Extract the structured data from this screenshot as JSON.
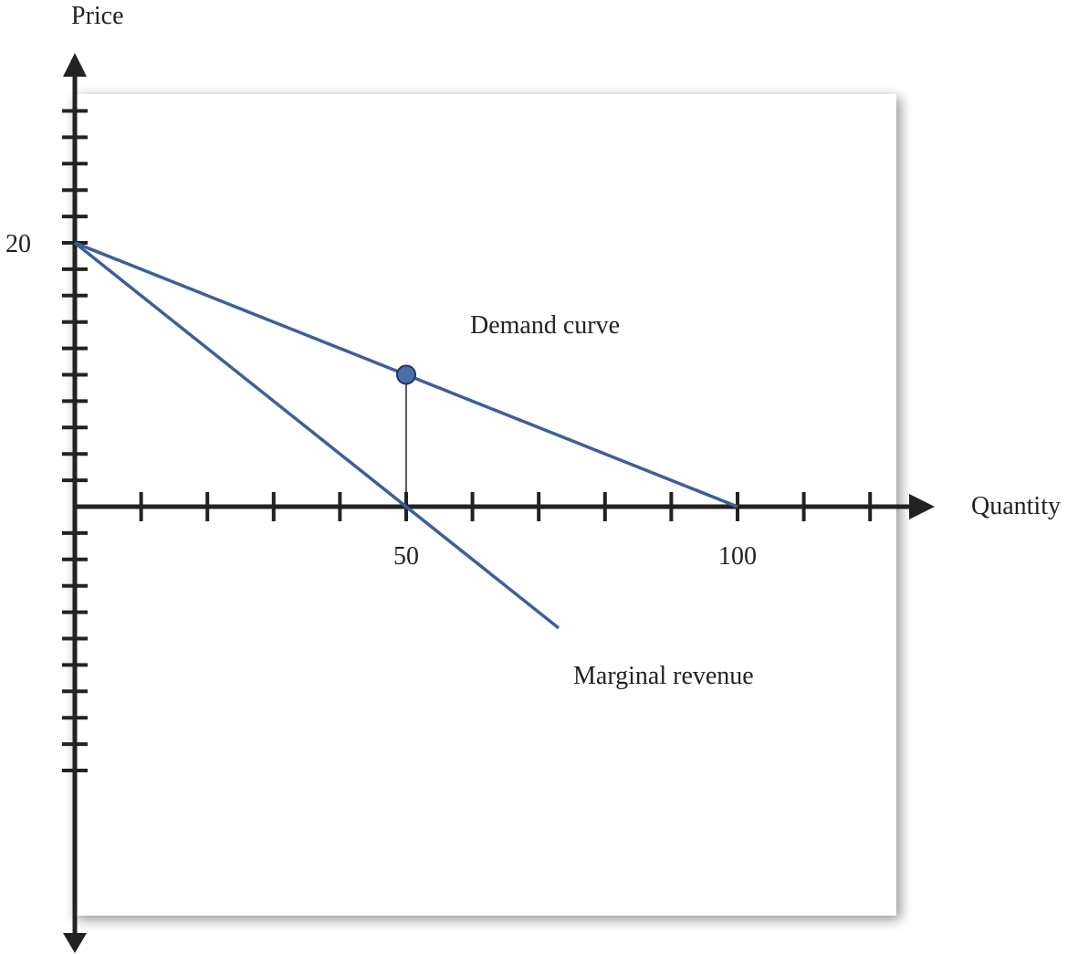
{
  "chart_data": {
    "type": "line",
    "xlabel": "Quantity",
    "ylabel": "Price",
    "xlim": [
      -0.8,
      122.5
    ],
    "ylim": [
      -10.3,
      20.0
    ],
    "x_ticks": [
      50,
      100
    ],
    "x_tick_labels": [
      "50",
      "100"
    ],
    "y_ticks": [
      20
    ],
    "y_tick_labels": [
      "20"
    ],
    "x_tick_step": 10,
    "y_tick_step": 2,
    "grid": false,
    "series": [
      {
        "name": "Demand curve",
        "color": "#3c5f9a",
        "points": [
          [
            0,
            20
          ],
          [
            100,
            0
          ]
        ]
      },
      {
        "name": "Marginal revenue",
        "color": "#3c5f9a",
        "points": [
          [
            0,
            20
          ],
          [
            73,
            -9.2
          ]
        ]
      }
    ],
    "annotations": {
      "marker": {
        "x": 50,
        "y": 10,
        "fill": "#4a6ea8",
        "stroke": "#1f3558"
      },
      "vertical_drop": {
        "x": 50,
        "y_from": 10,
        "y_to": 0
      }
    }
  },
  "colors": {
    "axis": "#222222",
    "panel": "#ffffff",
    "panel_shadow": "#bfbfbf",
    "line": "#3c5f9a"
  }
}
